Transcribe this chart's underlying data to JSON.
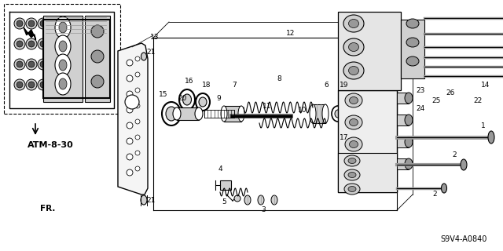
{
  "bg_color": "#ffffff",
  "fig_width": 6.4,
  "fig_height": 3.2,
  "dpi": 100,
  "text_atm": "ATM-8-30",
  "text_fr": "FR.",
  "text_code": "S9V4-A0840",
  "line_color": "#000000",
  "label_fontsize": 6.5,
  "gray_light": "#d0d0d0",
  "gray_mid": "#999999",
  "gray_dark": "#555555"
}
